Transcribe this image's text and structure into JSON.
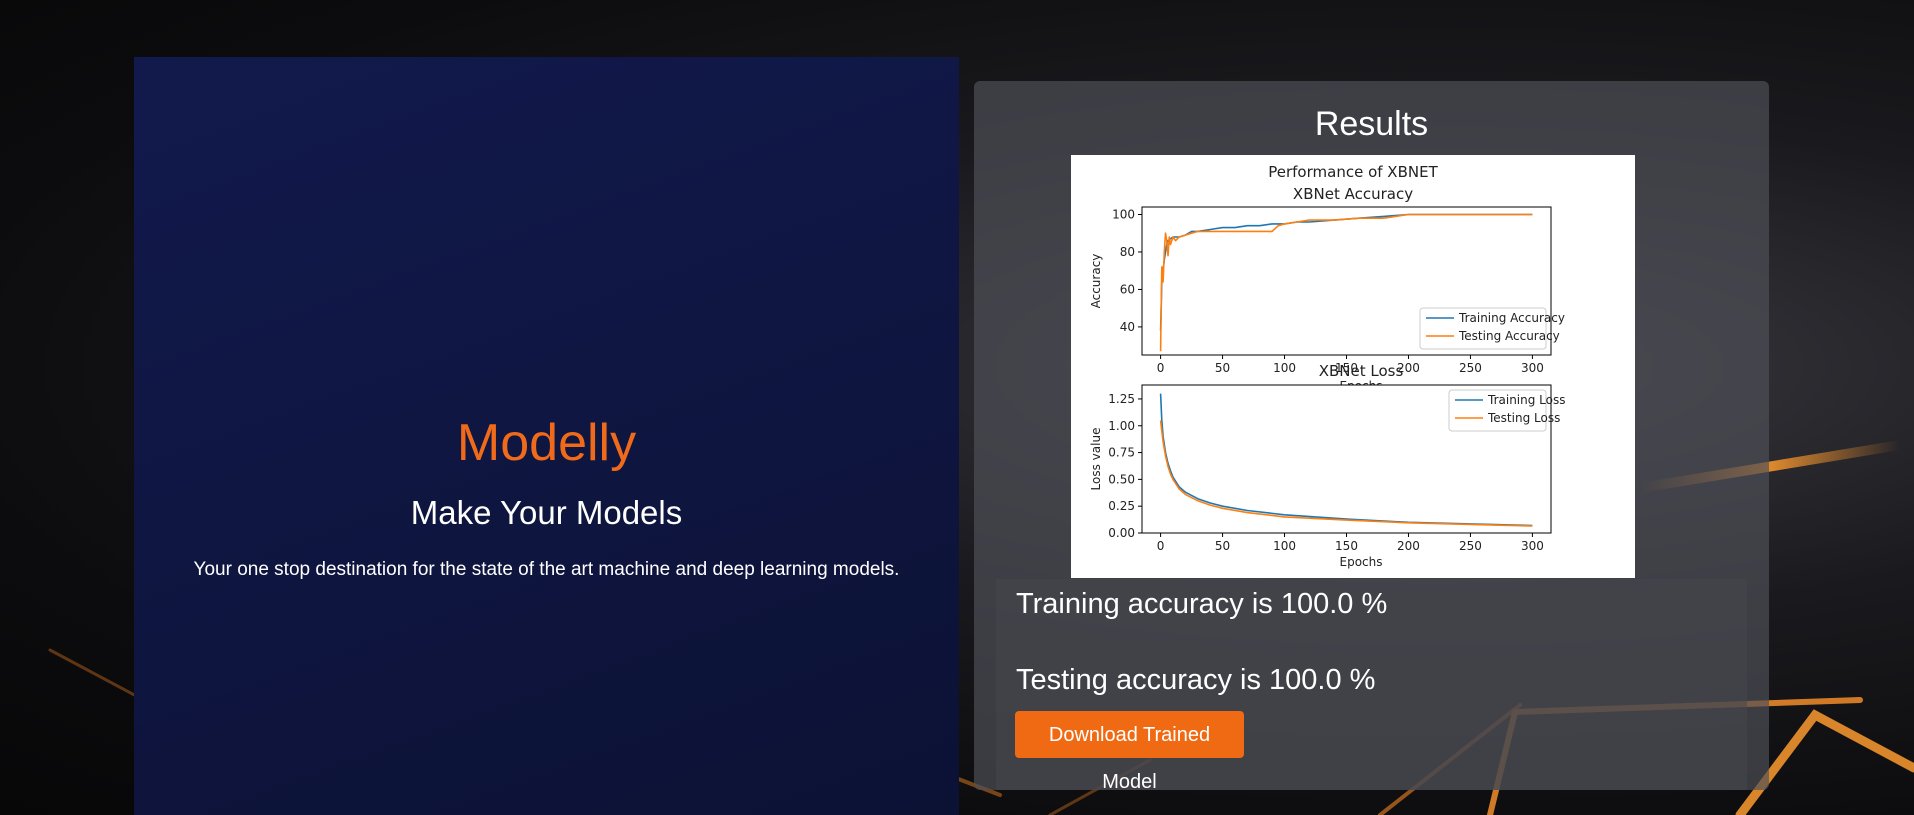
{
  "hero": {
    "title": "Modelly",
    "subtitle": "Make Your Models",
    "description": "Your one stop destination for the state of the art machine and deep learning models."
  },
  "results": {
    "title": "Results",
    "training_accuracy_text": "Training accuracy is 100.0 %",
    "testing_accuracy_text": "Testing accuracy is 100.0 %",
    "download_label": "Download Trained Model"
  },
  "colors": {
    "brand_orange": "#ef6a1b",
    "training_series": "#1f77b4",
    "testing_series": "#ff7f0e"
  },
  "chart_data": [
    {
      "type": "line",
      "suptitle": "Performance of XBNET",
      "title": "XBNet Accuracy",
      "xlabel": "Epochs",
      "ylabel": "Accuracy",
      "xlim": [
        -15,
        315
      ],
      "ylim": [
        25,
        104
      ],
      "xticks": [
        0,
        50,
        100,
        150,
        200,
        250,
        300
      ],
      "yticks": [
        40,
        60,
        80,
        100
      ],
      "legend": "lower-right",
      "grid": false,
      "series": [
        {
          "name": "Training Accuracy",
          "color": "#1f77b4",
          "x": [
            0,
            1,
            2,
            3,
            4,
            5,
            6,
            8,
            10,
            15,
            20,
            25,
            30,
            40,
            50,
            60,
            70,
            80,
            90,
            100,
            110,
            120,
            140,
            160,
            180,
            200,
            240,
            300
          ],
          "y": [
            38,
            64,
            70,
            76,
            80,
            84,
            86,
            87,
            88,
            88,
            89,
            91,
            91,
            92,
            93,
            93,
            94,
            94,
            95,
            95,
            96,
            96,
            97,
            98,
            99,
            100,
            100,
            100
          ]
        },
        {
          "name": "Testing Accuracy",
          "color": "#ff7f0e",
          "x": [
            0,
            1,
            2,
            3,
            4,
            5,
            6,
            7,
            8,
            10,
            12,
            15,
            20,
            25,
            30,
            40,
            50,
            60,
            70,
            80,
            90,
            95,
            100,
            110,
            120,
            140,
            160,
            180,
            200,
            240,
            300
          ],
          "y": [
            27,
            72,
            64,
            80,
            90,
            86,
            78,
            88,
            84,
            88,
            86,
            88,
            89,
            90,
            91,
            91,
            91,
            91,
            91,
            91,
            91,
            94,
            95,
            96,
            97,
            97,
            98,
            98,
            100,
            100,
            100
          ]
        }
      ]
    },
    {
      "type": "line",
      "title": "XBNet Loss",
      "xlabel": "Epochs",
      "ylabel": "Loss value",
      "xlim": [
        -15,
        315
      ],
      "ylim": [
        0,
        1.38
      ],
      "xticks": [
        0,
        50,
        100,
        150,
        200,
        250,
        300
      ],
      "yticks": [
        "0.00",
        "0.25",
        "0.50",
        "0.75",
        "1.00",
        "1.25"
      ],
      "legend": "top-right",
      "grid": false,
      "series": [
        {
          "name": "Training Loss",
          "color": "#1f77b4",
          "x": [
            0,
            1,
            2,
            4,
            6,
            8,
            10,
            15,
            20,
            30,
            40,
            50,
            70,
            100,
            150,
            200,
            250,
            300
          ],
          "y": [
            1.3,
            1.05,
            0.9,
            0.75,
            0.65,
            0.58,
            0.52,
            0.43,
            0.38,
            0.32,
            0.28,
            0.25,
            0.21,
            0.17,
            0.13,
            0.1,
            0.085,
            0.07
          ]
        },
        {
          "name": "Testing Loss",
          "color": "#ff7f0e",
          "x": [
            0,
            1,
            2,
            4,
            6,
            8,
            10,
            15,
            20,
            30,
            40,
            50,
            70,
            100,
            150,
            200,
            250,
            300
          ],
          "y": [
            1.05,
            0.95,
            0.85,
            0.72,
            0.62,
            0.55,
            0.5,
            0.41,
            0.36,
            0.3,
            0.26,
            0.23,
            0.19,
            0.15,
            0.12,
            0.095,
            0.08,
            0.065
          ]
        }
      ]
    }
  ]
}
